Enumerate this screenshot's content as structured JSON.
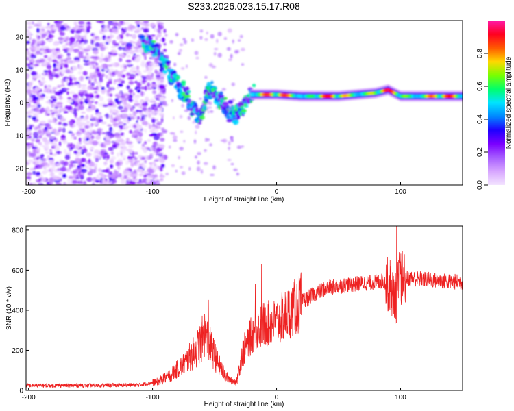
{
  "chart_data": [
    {
      "type": "heatmap",
      "title": "S233.2026.023.15.17.R08",
      "xlabel": "Height of straight line (km)",
      "ylabel": "Frequency (Hz)",
      "xlim": [
        -202,
        150
      ],
      "ylim": [
        -25,
        25
      ],
      "xticks": [
        -200,
        -100,
        0,
        100
      ],
      "yticks": [
        -20,
        -10,
        0,
        10,
        20
      ],
      "colorbar": {
        "label": "Normalized spectral amplitude",
        "range": [
          0,
          1
        ],
        "ticks": [
          "0.0",
          "0.2",
          "0.4",
          "0.6",
          "0.8"
        ],
        "colors": [
          "#f3e4ff",
          "#d7a6ff",
          "#a65cff",
          "#7a00ff",
          "#1f00ff",
          "#0088ff",
          "#00e4ff",
          "#00ff6a",
          "#7aff00",
          "#ffd800",
          "#ff5a00",
          "#ff0020",
          "#ff1aa8"
        ]
      },
      "ridge": {
        "description_points_km_hz": [
          [
            -105,
            19
          ],
          [
            -98,
            17
          ],
          [
            -90,
            12
          ],
          [
            -80,
            6
          ],
          [
            -72,
            2
          ],
          [
            -65,
            -3
          ],
          [
            -62,
            -6
          ],
          [
            -55,
            4
          ],
          [
            -48,
            2
          ],
          [
            -40,
            -3
          ],
          [
            -33,
            -3
          ],
          [
            -25,
            0
          ],
          [
            -20,
            2.5
          ],
          [
            0,
            2.5
          ],
          [
            20,
            2
          ],
          [
            50,
            2
          ],
          [
            80,
            3
          ],
          [
            90,
            4
          ],
          [
            100,
            2
          ],
          [
            150,
            2
          ]
        ],
        "stable_band_hz": 2,
        "stable_from_km": -20
      }
    },
    {
      "type": "line",
      "xlabel": "Height of straight line (km)",
      "ylabel": "SNR (10 * v/v)",
      "xlim": [
        -202,
        150
      ],
      "ylim": [
        0,
        820
      ],
      "xticks": [
        -200,
        -100,
        0,
        100
      ],
      "yticks": [
        0,
        200,
        400,
        600,
        800
      ],
      "color": "#ee2222",
      "profile_km_snr": [
        [
          -202,
          25
        ],
        [
          -150,
          25
        ],
        [
          -110,
          28
        ],
        [
          -95,
          45
        ],
        [
          -85,
          80
        ],
        [
          -75,
          130
        ],
        [
          -65,
          200
        ],
        [
          -58,
          280
        ],
        [
          -52,
          200
        ],
        [
          -45,
          110
        ],
        [
          -38,
          50
        ],
        [
          -32,
          45
        ],
        [
          -28,
          180
        ],
        [
          -20,
          280
        ],
        [
          -10,
          330
        ],
        [
          0,
          340
        ],
        [
          10,
          390
        ],
        [
          20,
          440
        ],
        [
          30,
          480
        ],
        [
          40,
          510
        ],
        [
          55,
          525
        ],
        [
          70,
          535
        ],
        [
          80,
          540
        ],
        [
          85,
          545
        ],
        [
          92,
          520
        ],
        [
          96,
          450
        ],
        [
          99,
          560
        ],
        [
          105,
          560
        ],
        [
          120,
          555
        ],
        [
          135,
          545
        ],
        [
          150,
          540
        ]
      ],
      "spikes_km_snr": [
        [
          -55,
          450
        ],
        [
          -17,
          530
        ],
        [
          -12,
          630
        ],
        [
          97,
          830
        ]
      ]
    }
  ]
}
